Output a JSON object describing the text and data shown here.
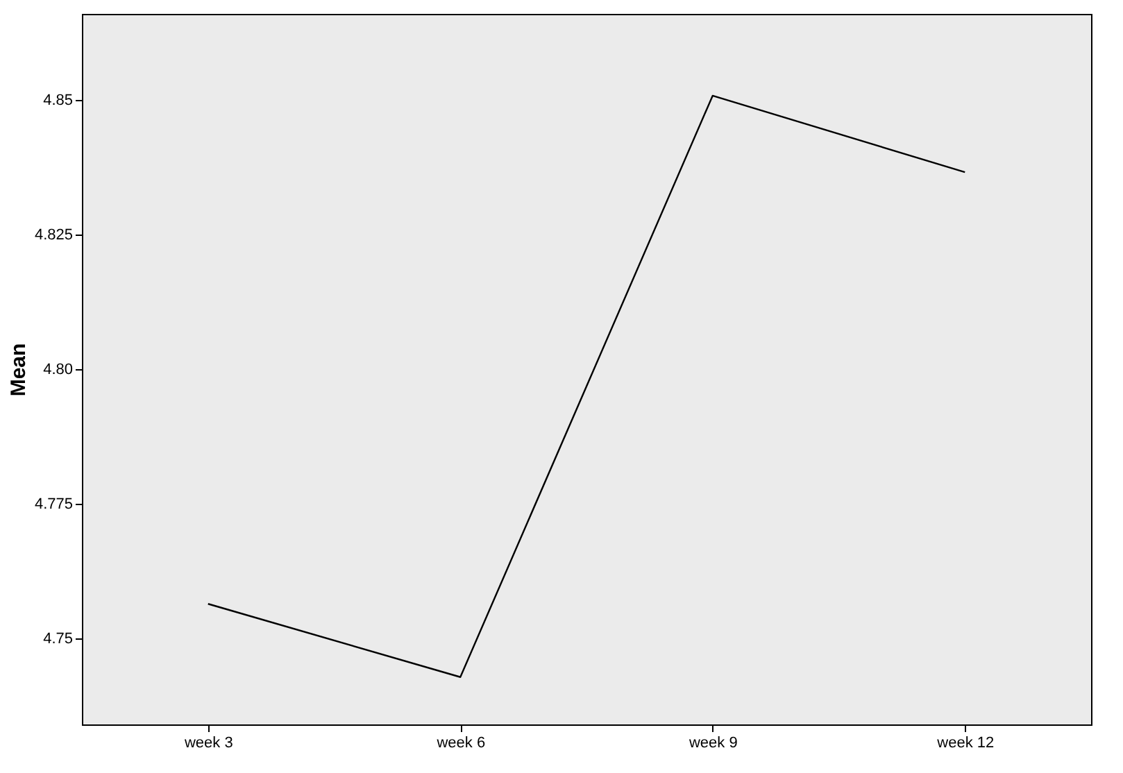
{
  "chart_data": {
    "type": "line",
    "ylabel": "Mean",
    "categories": [
      "week 3",
      "week 6",
      "week 9",
      "week 12"
    ],
    "series": [
      {
        "color": "#000000",
        "values": [
          4.7564,
          4.7428,
          4.8508,
          4.8366
        ]
      }
    ],
    "ylim": [
      4.734,
      4.866
    ],
    "yticks": [
      4.75,
      4.775,
      {
        "value": 4.8,
        "label": "4.80"
      },
      4.825,
      4.85
    ],
    "grid": false,
    "marker": "none"
  }
}
